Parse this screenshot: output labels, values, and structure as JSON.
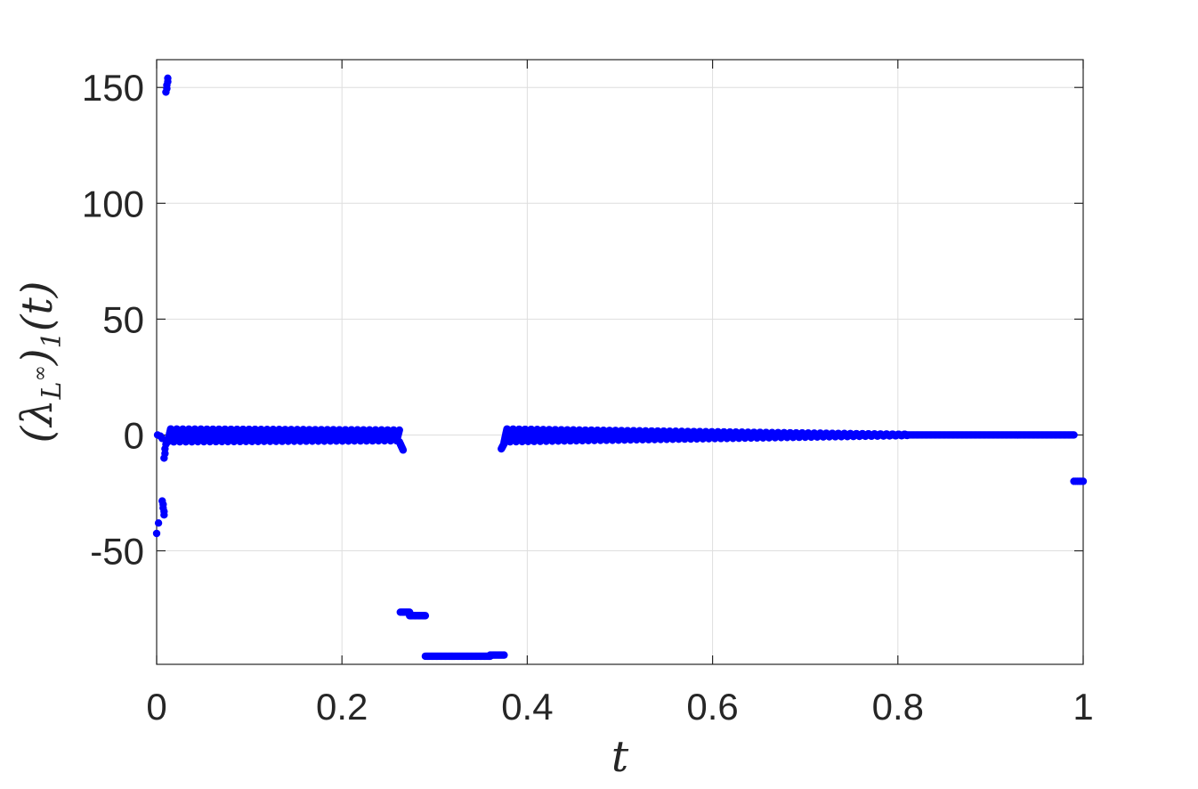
{
  "chart_data": {
    "type": "scatter",
    "title": "",
    "xlabel": "t",
    "ylabel": "(λ",
    "ylabel_sub": "L",
    "ylabel_sup": "∞",
    "ylabel_tail": ")",
    "ylabel_sub2": "1",
    "ylabel_end": "(t)",
    "xlim": [
      0,
      1
    ],
    "ylim": [
      -99,
      162
    ],
    "grid": true,
    "marker_color": "#0000ff",
    "x_ticks": [
      {
        "value": 0,
        "label": "0"
      },
      {
        "value": 0.2,
        "label": "0.2"
      },
      {
        "value": 0.4,
        "label": "0.4"
      },
      {
        "value": 0.6,
        "label": "0.6"
      },
      {
        "value": 0.8,
        "label": "0.8"
      },
      {
        "value": 1,
        "label": "1"
      }
    ],
    "y_ticks": [
      {
        "value": -50,
        "label": "-50"
      },
      {
        "value": 0,
        "label": "0"
      },
      {
        "value": 50,
        "label": "50"
      },
      {
        "value": 100,
        "label": "100"
      },
      {
        "value": 150,
        "label": "150"
      }
    ],
    "isolated_points": [
      {
        "x": 0.0,
        "y": -42.5
      },
      {
        "x": 0.002,
        "y": -38.0
      },
      {
        "x": 0.001,
        "y": 0.0
      },
      {
        "x": 0.004,
        "y": -0.5
      },
      {
        "x": 0.006,
        "y": -1.5
      },
      {
        "x": 0.006,
        "y": -28.5
      },
      {
        "x": 0.007,
        "y": -30.0
      },
      {
        "x": 0.007,
        "y": -31.5
      },
      {
        "x": 0.008,
        "y": -33.0
      },
      {
        "x": 0.008,
        "y": -34.5
      },
      {
        "x": 0.008,
        "y": -10.0
      },
      {
        "x": 0.009,
        "y": -8.0
      },
      {
        "x": 0.009,
        "y": -6.0
      },
      {
        "x": 0.01,
        "y": -4.0
      },
      {
        "x": 0.01,
        "y": 148.0
      },
      {
        "x": 0.011,
        "y": 149.5
      },
      {
        "x": 0.011,
        "y": 151.0
      },
      {
        "x": 0.012,
        "y": 152.5
      },
      {
        "x": 0.012,
        "y": 154.0
      },
      {
        "x": 0.99,
        "y": -20.0
      },
      {
        "x": 0.992,
        "y": -20.0
      },
      {
        "x": 0.994,
        "y": -20.0
      },
      {
        "x": 0.996,
        "y": -20.0
      },
      {
        "x": 0.998,
        "y": -20.0
      },
      {
        "x": 1.0,
        "y": -20.0
      }
    ],
    "oscillating_segments": [
      {
        "x_start": 0.012,
        "x_end": 0.262,
        "amp_start": 3.0,
        "amp_end": 2.5,
        "period": 0.0065
      },
      {
        "x_start": 0.375,
        "x_end": 0.81,
        "amp_start": 3.0,
        "amp_end": 0.3,
        "period": 0.0065
      }
    ],
    "steps": [
      {
        "x_start": 0.262,
        "x_end": 0.266,
        "y_start": -3.0,
        "y_end": -6.5
      },
      {
        "x_start": 0.372,
        "x_end": 0.376,
        "y_start": -6.0,
        "y_end": -3.0
      }
    ],
    "flat_segments": [
      {
        "x_start": 0.263,
        "x_end": 0.273,
        "y": -76.5
      },
      {
        "x_start": 0.273,
        "x_end": 0.29,
        "y": -78.0
      },
      {
        "x_start": 0.29,
        "x_end": 0.36,
        "y": -95.5
      },
      {
        "x_start": 0.36,
        "x_end": 0.375,
        "y": -95.0
      },
      {
        "x_start": 0.81,
        "x_end": 0.99,
        "y": 0.0
      }
    ]
  }
}
